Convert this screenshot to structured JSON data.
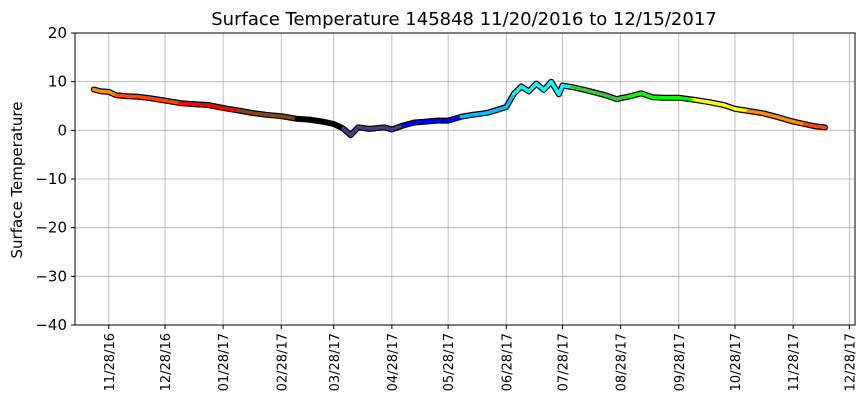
{
  "chart_data": {
    "type": "line",
    "title": "Surface Temperature 145848  11/20/2016 to 12/15/2017",
    "xlabel": "",
    "ylabel": "Surface Temperature",
    "ylim": [
      -40,
      20
    ],
    "yticks": [
      "20",
      "10",
      "0",
      "−10",
      "−20",
      "−30",
      "−40"
    ],
    "yticks_values": [
      20,
      10,
      0,
      -10,
      -20,
      -30,
      -40
    ],
    "xticks": [
      "11/28/16",
      "12/28/16",
      "01/28/17",
      "02/28/17",
      "03/28/17",
      "04/28/17",
      "05/28/17",
      "06/28/17",
      "07/28/17",
      "08/28/17",
      "09/28/17",
      "10/28/17",
      "11/28/17",
      "12/28/17"
    ],
    "xrange": [
      "2016-11-10",
      "2017-12-31"
    ],
    "grid": true,
    "series": [
      {
        "color_by": "month",
        "colors": [
          "#ff0000",
          "#8b4513",
          "#000000",
          "#483d8b",
          "#0000ff",
          "#00bfff",
          "#00ffff",
          "#32cd32",
          "#00ff00",
          "#ffff00",
          "#ff8c00",
          "#ff4500"
        ],
        "points": [
          [
            "2016-11-20",
            8.4
          ],
          [
            "2016-11-24",
            8.0
          ],
          [
            "2016-11-28",
            7.9
          ],
          [
            "2016-12-02",
            7.2
          ],
          [
            "2016-12-08",
            7.0
          ],
          [
            "2016-12-14",
            6.9
          ],
          [
            "2016-12-20",
            6.6
          ],
          [
            "2016-12-28",
            6.1
          ],
          [
            "2017-01-05",
            5.6
          ],
          [
            "2017-01-12",
            5.4
          ],
          [
            "2017-01-20",
            5.2
          ],
          [
            "2017-01-28",
            4.6
          ],
          [
            "2017-02-05",
            4.1
          ],
          [
            "2017-02-12",
            3.6
          ],
          [
            "2017-02-20",
            3.2
          ],
          [
            "2017-02-28",
            2.9
          ],
          [
            "2017-03-08",
            2.4
          ],
          [
            "2017-03-15",
            2.2
          ],
          [
            "2017-03-22",
            1.8
          ],
          [
            "2017-03-28",
            1.3
          ],
          [
            "2017-04-02",
            0.4
          ],
          [
            "2017-04-06",
            -1.0
          ],
          [
            "2017-04-10",
            0.6
          ],
          [
            "2017-04-16",
            0.3
          ],
          [
            "2017-04-24",
            0.6
          ],
          [
            "2017-04-28",
            0.2
          ],
          [
            "2017-05-04",
            1.0
          ],
          [
            "2017-05-10",
            1.6
          ],
          [
            "2017-05-16",
            1.8
          ],
          [
            "2017-05-22",
            2.0
          ],
          [
            "2017-05-28",
            2.0
          ],
          [
            "2017-06-04",
            2.8
          ],
          [
            "2017-06-10",
            3.2
          ],
          [
            "2017-06-18",
            3.6
          ],
          [
            "2017-06-24",
            4.3
          ],
          [
            "2017-06-28",
            4.8
          ],
          [
            "2017-07-02",
            7.5
          ],
          [
            "2017-07-06",
            9.0
          ],
          [
            "2017-07-10",
            8.0
          ],
          [
            "2017-07-14",
            9.6
          ],
          [
            "2017-07-18",
            8.3
          ],
          [
            "2017-07-22",
            10.0
          ],
          [
            "2017-07-26",
            7.4
          ],
          [
            "2017-07-28",
            9.2
          ],
          [
            "2017-08-02",
            8.9
          ],
          [
            "2017-08-08",
            8.4
          ],
          [
            "2017-08-14",
            7.8
          ],
          [
            "2017-08-20",
            7.2
          ],
          [
            "2017-08-26",
            6.4
          ],
          [
            "2017-08-28",
            6.6
          ],
          [
            "2017-09-02",
            7.0
          ],
          [
            "2017-09-08",
            7.6
          ],
          [
            "2017-09-14",
            6.8
          ],
          [
            "2017-09-20",
            6.7
          ],
          [
            "2017-09-28",
            6.7
          ],
          [
            "2017-10-06",
            6.3
          ],
          [
            "2017-10-14",
            5.8
          ],
          [
            "2017-10-22",
            5.2
          ],
          [
            "2017-10-28",
            4.4
          ],
          [
            "2017-11-04",
            4.0
          ],
          [
            "2017-11-12",
            3.5
          ],
          [
            "2017-11-20",
            2.7
          ],
          [
            "2017-11-28",
            1.8
          ],
          [
            "2017-12-04",
            1.3
          ],
          [
            "2017-12-10",
            0.8
          ],
          [
            "2017-12-15",
            0.6
          ]
        ]
      }
    ]
  }
}
